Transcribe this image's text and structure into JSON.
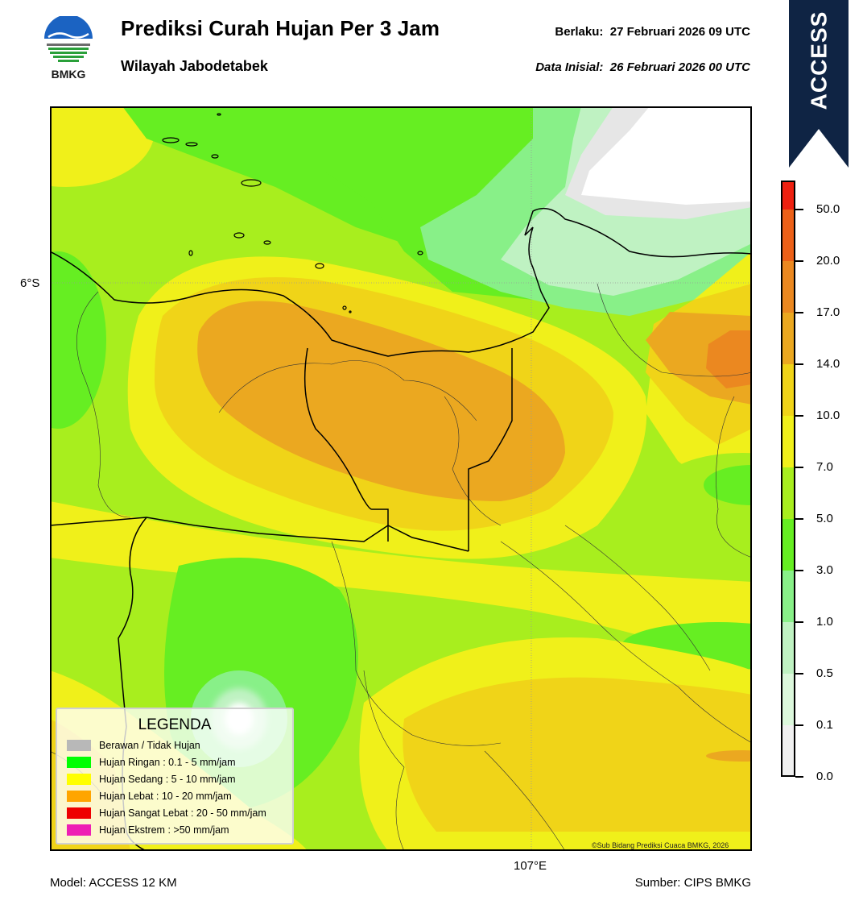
{
  "header": {
    "logo_text": "BMKG",
    "title": "Prediksi Curah Hujan Per 3 Jam",
    "subtitle": "Wilayah Jabodetabek",
    "valid_label": "Berlaku:",
    "valid_value": "27 Februari 2026 09 UTC",
    "init_label": "Data Inisial:",
    "init_value": "26 Februari 2026 00 UTC"
  },
  "ribbon": {
    "label": "ACCESS",
    "color": "#0f2444"
  },
  "map": {
    "lat_label": "6°S",
    "lon_label": "107°E",
    "copyright": "©Sub Bidang Prediksi Cuaca BMKG, 2026"
  },
  "legend": {
    "title": "LEGENDA",
    "items": [
      {
        "label": "Berawan / Tidak Hujan",
        "color": "#b8b8b8"
      },
      {
        "label": "Hujan Ringan : 0.1 - 5 mm/jam",
        "color": "#00ff00"
      },
      {
        "label": "Hujan Sedang : 5 - 10 mm/jam",
        "color": "#ffff00"
      },
      {
        "label": "Hujan Lebat : 10 - 20 mm/jam",
        "color": "#ffa500"
      },
      {
        "label": "Hujan Sangat Lebat : 20 - 50 mm/jam",
        "color": "#ee0000"
      },
      {
        "label": "Hujan Ekstrem : >50 mm/jam",
        "color": "#ee1fb4"
      }
    ]
  },
  "colorbar": {
    "ticks": [
      "0.0",
      "0.1",
      "0.5",
      "1.0",
      "3.0",
      "5.0",
      "7.0",
      "10.0",
      "14.0",
      "17.0",
      "20.0",
      "50.0"
    ],
    "colors": [
      "#f0f0f0",
      "#dcf8dc",
      "#bff2c2",
      "#88f088",
      "#66ee22",
      "#a8ee1e",
      "#f0f01a",
      "#f0d418",
      "#eba820",
      "#eb8820",
      "#ec6018",
      "#ee2010",
      "#ee22c0"
    ]
  },
  "footer": {
    "model": "Model: ACCESS 12 KM",
    "source": "Sumber: CIPS BMKG"
  }
}
